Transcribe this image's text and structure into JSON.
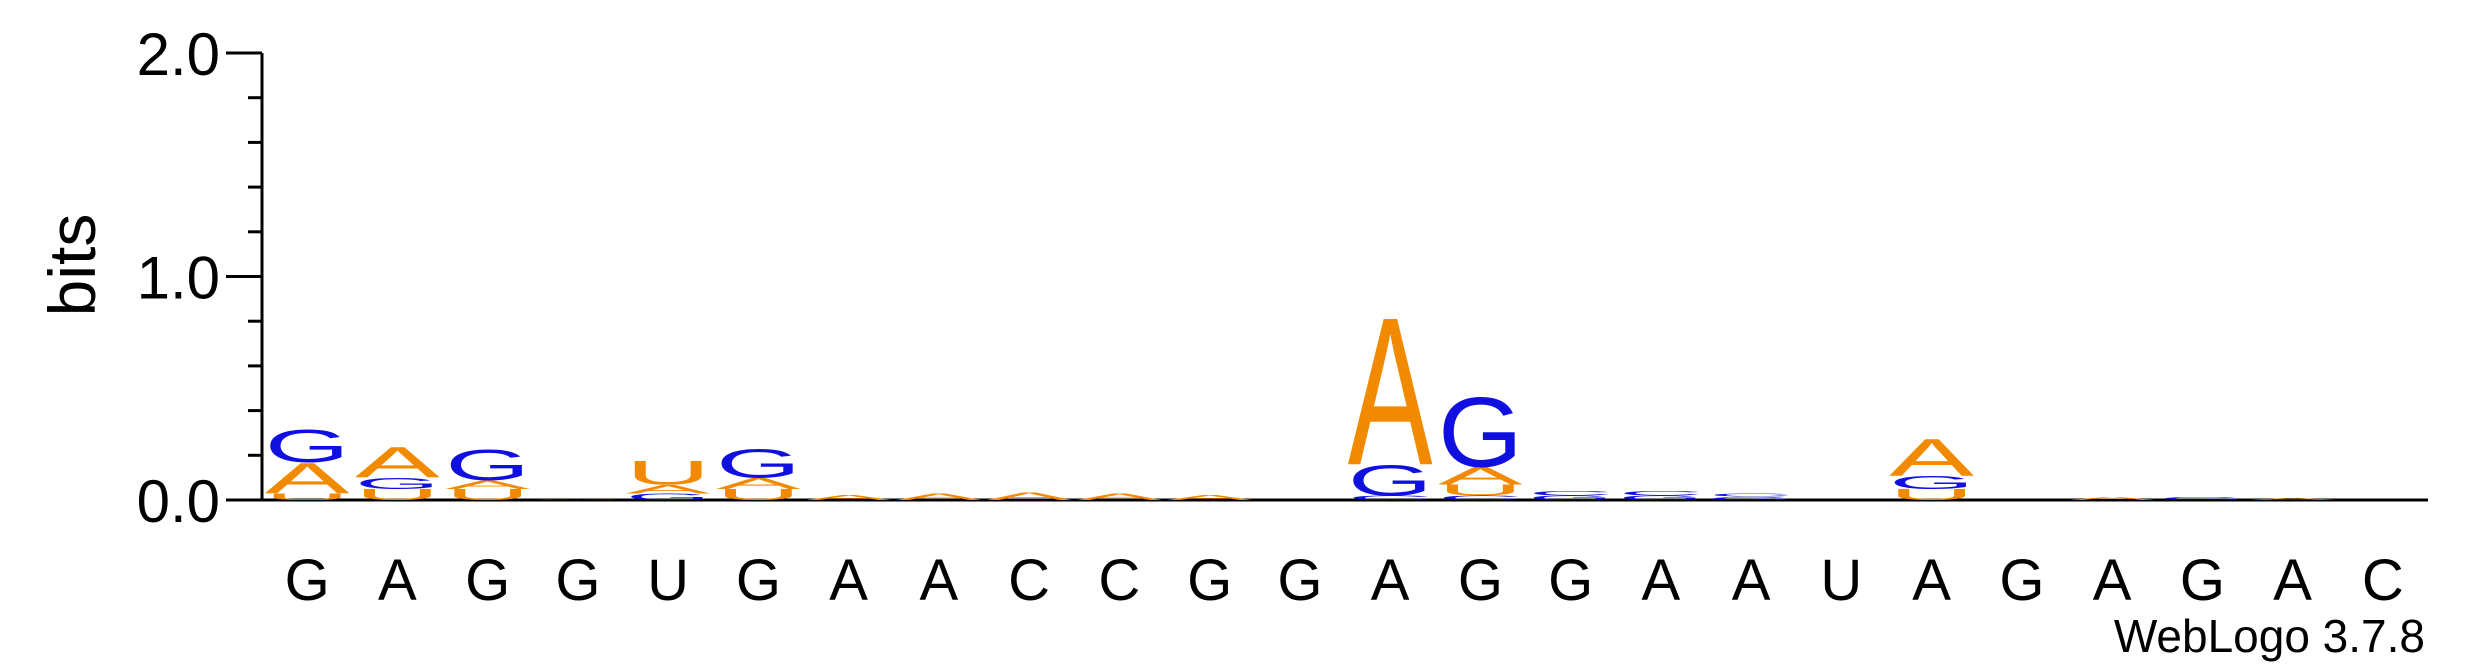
{
  "chart_data": {
    "type": "sequence-logo",
    "ylabel": "bits",
    "ylim": [
      0,
      2.0
    ],
    "yticks": [
      {
        "value": 0.0,
        "label": "0.0"
      },
      {
        "value": 1.0,
        "label": "1.0"
      },
      {
        "value": 2.0,
        "label": "2.0"
      }
    ],
    "colors": {
      "A": "#f28a00",
      "G": "#0f0fe0",
      "U": "#f28a00",
      "C": "#0f0fe0",
      "axis": "#000000"
    },
    "positions": [
      {
        "label": "G",
        "stack": [
          {
            "letter": "U",
            "bits": 0.03
          },
          {
            "letter": "A",
            "bits": 0.14
          },
          {
            "letter": "G",
            "bits": 0.15
          }
        ]
      },
      {
        "label": "A",
        "stack": [
          {
            "letter": "U",
            "bits": 0.05
          },
          {
            "letter": "G",
            "bits": 0.05
          },
          {
            "letter": "A",
            "bits": 0.14
          }
        ]
      },
      {
        "label": "G",
        "stack": [
          {
            "letter": "U",
            "bits": 0.05
          },
          {
            "letter": "A",
            "bits": 0.04
          },
          {
            "letter": "G",
            "bits": 0.14
          }
        ]
      },
      {
        "label": "G",
        "stack": [
          {
            "letter": "A",
            "bits": 0.003
          }
        ]
      },
      {
        "label": "U",
        "stack": [
          {
            "letter": "G",
            "bits": 0.03
          },
          {
            "letter": "A",
            "bits": 0.04
          },
          {
            "letter": "U",
            "bits": 0.11
          }
        ]
      },
      {
        "label": "G",
        "stack": [
          {
            "letter": "U",
            "bits": 0.05
          },
          {
            "letter": "A",
            "bits": 0.05
          },
          {
            "letter": "G",
            "bits": 0.13
          }
        ]
      },
      {
        "label": "A",
        "stack": [
          {
            "letter": "A",
            "bits": 0.025
          }
        ]
      },
      {
        "label": "A",
        "stack": [
          {
            "letter": "A",
            "bits": 0.03
          }
        ]
      },
      {
        "label": "C",
        "stack": [
          {
            "letter": "A",
            "bits": 0.035
          }
        ]
      },
      {
        "label": "C",
        "stack": [
          {
            "letter": "A",
            "bits": 0.03
          }
        ]
      },
      {
        "label": "G",
        "stack": [
          {
            "letter": "A",
            "bits": 0.025
          }
        ]
      },
      {
        "label": "G",
        "stack": []
      },
      {
        "label": "A",
        "stack": [
          {
            "letter": "C",
            "bits": 0.02
          },
          {
            "letter": "G",
            "bits": 0.14
          },
          {
            "letter": "A",
            "bits": 0.68
          }
        ]
      },
      {
        "label": "G",
        "stack": [
          {
            "letter": "C",
            "bits": 0.02
          },
          {
            "letter": "U",
            "bits": 0.05
          },
          {
            "letter": "A",
            "bits": 0.08
          },
          {
            "letter": "G",
            "bits": 0.32
          }
        ]
      },
      {
        "label": "G",
        "stack": [
          {
            "letter": "G",
            "bits": 0.02
          },
          {
            "letter": "C",
            "bits": 0.02
          }
        ]
      },
      {
        "label": "A",
        "stack": [
          {
            "letter": "G",
            "bits": 0.02
          },
          {
            "letter": "C",
            "bits": 0.02
          }
        ]
      },
      {
        "label": "A",
        "stack": [
          {
            "letter": "G",
            "bits": 0.015
          },
          {
            "letter": "C",
            "bits": 0.015
          }
        ]
      },
      {
        "label": "U",
        "stack": []
      },
      {
        "label": "A",
        "stack": [
          {
            "letter": "U",
            "bits": 0.05
          },
          {
            "letter": "G",
            "bits": 0.06
          },
          {
            "letter": "A",
            "bits": 0.17
          }
        ]
      },
      {
        "label": "G",
        "stack": []
      },
      {
        "label": "A",
        "stack": [
          {
            "letter": "A",
            "bits": 0.015
          }
        ]
      },
      {
        "label": "G",
        "stack": [
          {
            "letter": "G",
            "bits": 0.015
          }
        ]
      },
      {
        "label": "A",
        "stack": [
          {
            "letter": "A",
            "bits": 0.01
          }
        ]
      },
      {
        "label": "C",
        "stack": []
      }
    ],
    "footer": "WebLogo 3.7.8"
  }
}
